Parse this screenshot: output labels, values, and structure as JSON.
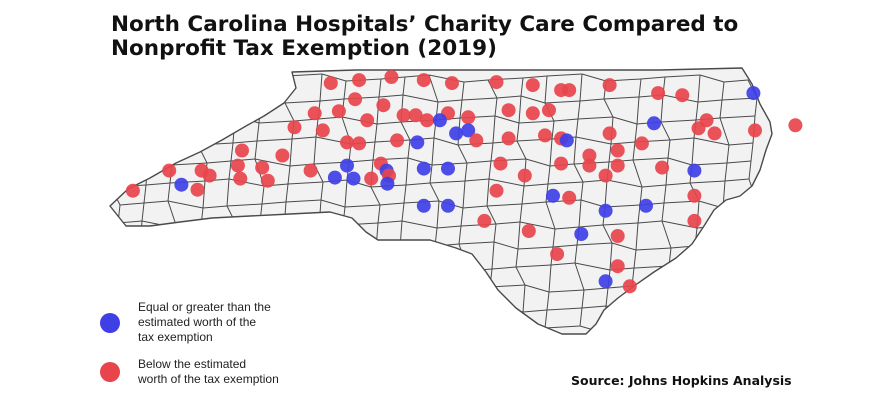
{
  "title": {
    "line1": "North Carolina Hospitals’ Charity Care Compared to",
    "line2": "Nonprofit Tax Exemption (2019)"
  },
  "legend": {
    "items": [
      {
        "key": "at_or_above",
        "color": "#3f3fe6",
        "lines": [
          "Equal or greater than the",
          "estimated worth of the",
          "tax exemption"
        ]
      },
      {
        "key": "below",
        "color": "#e8444c",
        "lines": [
          "Below the estimated",
          "worth of the tax exemption"
        ]
      }
    ]
  },
  "source": "Source: Johns Hopkins Analysis",
  "colors": {
    "equal_or_greater": "#3f3fe6",
    "below": "#e8444c",
    "county_fill": "#f2f2f2",
    "county_border": "#4a4a4a"
  },
  "map": {
    "region": "North Carolina",
    "counties_shown": true,
    "hospitals": [
      {
        "category": "below",
        "lat": 36.42,
        "lon": -81.45
      },
      {
        "category": "below",
        "lat": 36.45,
        "lon": -81.1
      },
      {
        "category": "below",
        "lat": 36.48,
        "lon": -80.7
      },
      {
        "category": "below",
        "lat": 36.45,
        "lon": -80.3
      },
      {
        "category": "below",
        "lat": 36.42,
        "lon": -79.95
      },
      {
        "category": "below",
        "lat": 36.43,
        "lon": -79.4
      },
      {
        "category": "below",
        "lat": 36.4,
        "lon": -78.95
      },
      {
        "category": "below",
        "lat": 36.35,
        "lon": -78.6
      },
      {
        "category": "below",
        "lat": 36.35,
        "lon": -78.5
      },
      {
        "category": "below",
        "lat": 36.4,
        "lon": -78.0
      },
      {
        "category": "below",
        "lat": 36.32,
        "lon": -77.4
      },
      {
        "category": "below",
        "lat": 36.3,
        "lon": -77.1
      },
      {
        "category": "equal_or_greater",
        "lat": 36.32,
        "lon": -76.22
      },
      {
        "category": "below",
        "lat": 36.26,
        "lon": -81.15
      },
      {
        "category": "below",
        "lat": 36.2,
        "lon": -80.8
      },
      {
        "category": "below",
        "lat": 36.12,
        "lon": -81.65
      },
      {
        "category": "below",
        "lat": 36.14,
        "lon": -81.35
      },
      {
        "category": "below",
        "lat": 36.05,
        "lon": -81.0
      },
      {
        "category": "below",
        "lat": 36.1,
        "lon": -80.55
      },
      {
        "category": "below",
        "lat": 36.1,
        "lon": -80.4
      },
      {
        "category": "below",
        "lat": 36.12,
        "lon": -80.0
      },
      {
        "category": "below",
        "lat": 36.08,
        "lon": -79.75
      },
      {
        "category": "below",
        "lat": 36.15,
        "lon": -79.25
      },
      {
        "category": "below",
        "lat": 36.12,
        "lon": -78.95
      },
      {
        "category": "below",
        "lat": 36.15,
        "lon": -78.75
      },
      {
        "category": "below",
        "lat": 35.98,
        "lon": -81.9
      },
      {
        "category": "below",
        "lat": 35.95,
        "lon": -81.55
      },
      {
        "category": "below",
        "lat": 35.83,
        "lon": -81.25
      },
      {
        "category": "below",
        "lat": 35.82,
        "lon": -81.1
      },
      {
        "category": "below",
        "lat": 35.85,
        "lon": -80.63
      },
      {
        "category": "equal_or_greater",
        "lat": 35.83,
        "lon": -80.38
      },
      {
        "category": "below",
        "lat": 36.05,
        "lon": -80.26
      },
      {
        "category": "equal_or_greater",
        "lat": 36.05,
        "lon": -80.1
      },
      {
        "category": "equal_or_greater",
        "lat": 35.92,
        "lon": -79.9
      },
      {
        "category": "equal_or_greater",
        "lat": 35.95,
        "lon": -79.75
      },
      {
        "category": "below",
        "lat": 35.85,
        "lon": -79.65
      },
      {
        "category": "below",
        "lat": 35.87,
        "lon": -79.25
      },
      {
        "category": "below",
        "lat": 35.9,
        "lon": -78.8
      },
      {
        "category": "below",
        "lat": 35.87,
        "lon": -78.6
      },
      {
        "category": "equal_or_greater",
        "lat": 35.85,
        "lon": -78.53
      },
      {
        "category": "below",
        "lat": 35.92,
        "lon": -78.0
      },
      {
        "category": "equal_or_greater",
        "lat": 36.02,
        "lon": -77.45
      },
      {
        "category": "below",
        "lat": 35.97,
        "lon": -76.9
      },
      {
        "category": "below",
        "lat": 35.92,
        "lon": -76.7
      },
      {
        "category": "below",
        "lat": 35.95,
        "lon": -76.2
      },
      {
        "category": "below",
        "lat": 36.05,
        "lon": -76.8
      },
      {
        "category": "below",
        "lat": 36.0,
        "lon": -75.7
      },
      {
        "category": "below",
        "lat": 35.82,
        "lon": -77.6
      },
      {
        "category": "below",
        "lat": 35.75,
        "lon": -77.9
      },
      {
        "category": "below",
        "lat": 35.7,
        "lon": -78.25
      },
      {
        "category": "below",
        "lat": 35.75,
        "lon": -82.55
      },
      {
        "category": "below",
        "lat": 35.7,
        "lon": -82.05
      },
      {
        "category": "below",
        "lat": 35.6,
        "lon": -82.6
      },
      {
        "category": "below",
        "lat": 35.58,
        "lon": -82.3
      },
      {
        "category": "below",
        "lat": 35.55,
        "lon": -83.05
      },
      {
        "category": "below",
        "lat": 35.5,
        "lon": -82.95
      },
      {
        "category": "below",
        "lat": 35.55,
        "lon": -83.45
      },
      {
        "category": "below",
        "lat": 35.35,
        "lon": -83.9
      },
      {
        "category": "equal_or_greater",
        "lat": 35.41,
        "lon": -83.3
      },
      {
        "category": "below",
        "lat": 35.36,
        "lon": -83.1
      },
      {
        "category": "below",
        "lat": 35.47,
        "lon": -82.57
      },
      {
        "category": "below",
        "lat": 35.45,
        "lon": -82.23
      },
      {
        "category": "below",
        "lat": 35.55,
        "lon": -81.7
      },
      {
        "category": "equal_or_greater",
        "lat": 35.6,
        "lon": -81.25
      },
      {
        "category": "equal_or_greater",
        "lat": 35.48,
        "lon": -81.4
      },
      {
        "category": "equal_or_greater",
        "lat": 35.47,
        "lon": -81.17
      },
      {
        "category": "below",
        "lat": 35.47,
        "lon": -80.95
      },
      {
        "category": "below",
        "lat": 35.62,
        "lon": -80.83
      },
      {
        "category": "equal_or_greater",
        "lat": 35.55,
        "lon": -80.76
      },
      {
        "category": "below",
        "lat": 35.5,
        "lon": -80.73
      },
      {
        "category": "equal_or_greater",
        "lat": 35.42,
        "lon": -80.75
      },
      {
        "category": "equal_or_greater",
        "lat": 35.57,
        "lon": -80.3
      },
      {
        "category": "equal_or_greater",
        "lat": 35.57,
        "lon": -80.0
      },
      {
        "category": "below",
        "lat": 35.62,
        "lon": -79.35
      },
      {
        "category": "below",
        "lat": 35.5,
        "lon": -79.05
      },
      {
        "category": "below",
        "lat": 35.35,
        "lon": -79.4
      },
      {
        "category": "below",
        "lat": 35.62,
        "lon": -78.6
      },
      {
        "category": "below",
        "lat": 35.6,
        "lon": -78.25
      },
      {
        "category": "below",
        "lat": 35.5,
        "lon": -78.05
      },
      {
        "category": "below",
        "lat": 35.6,
        "lon": -77.9
      },
      {
        "category": "below",
        "lat": 35.58,
        "lon": -77.35
      },
      {
        "category": "equal_or_greater",
        "lat": 35.55,
        "lon": -76.95
      },
      {
        "category": "below",
        "lat": 35.3,
        "lon": -76.95
      },
      {
        "category": "equal_or_greater",
        "lat": 35.2,
        "lon": -80.3
      },
      {
        "category": "equal_or_greater",
        "lat": 35.2,
        "lon": -80.0
      },
      {
        "category": "equal_or_greater",
        "lat": 35.3,
        "lon": -78.7
      },
      {
        "category": "below",
        "lat": 35.28,
        "lon": -78.5
      },
      {
        "category": "equal_or_greater",
        "lat": 35.15,
        "lon": -78.05
      },
      {
        "category": "equal_or_greater",
        "lat": 35.2,
        "lon": -77.55
      },
      {
        "category": "below",
        "lat": 35.05,
        "lon": -79.55
      },
      {
        "category": "below",
        "lat": 35.05,
        "lon": -76.95
      },
      {
        "category": "below",
        "lat": 34.95,
        "lon": -79.0
      },
      {
        "category": "equal_or_greater",
        "lat": 34.92,
        "lon": -78.35
      },
      {
        "category": "below",
        "lat": 34.9,
        "lon": -77.9
      },
      {
        "category": "below",
        "lat": 34.72,
        "lon": -78.65
      },
      {
        "category": "below",
        "lat": 34.6,
        "lon": -77.9
      },
      {
        "category": "equal_or_greater",
        "lat": 34.45,
        "lon": -78.05
      },
      {
        "category": "below",
        "lat": 34.4,
        "lon": -77.75
      }
    ]
  }
}
